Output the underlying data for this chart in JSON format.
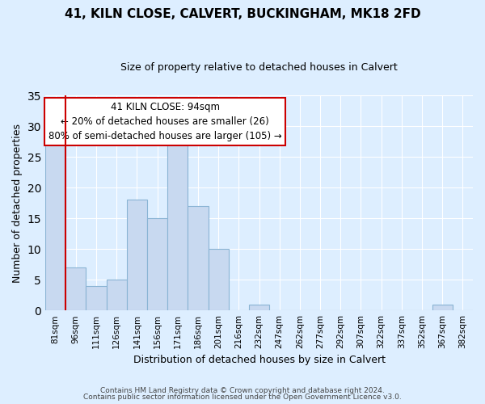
{
  "title": "41, KILN CLOSE, CALVERT, BUCKINGHAM, MK18 2FD",
  "subtitle": "Size of property relative to detached houses in Calvert",
  "xlabel": "Distribution of detached houses by size in Calvert",
  "ylabel": "Number of detached properties",
  "footer_line1": "Contains HM Land Registry data © Crown copyright and database right 2024.",
  "footer_line2": "Contains public sector information licensed under the Open Government Licence v3.0.",
  "bin_labels": [
    "81sqm",
    "96sqm",
    "111sqm",
    "126sqm",
    "141sqm",
    "156sqm",
    "171sqm",
    "186sqm",
    "201sqm",
    "216sqm",
    "232sqm",
    "247sqm",
    "262sqm",
    "277sqm",
    "292sqm",
    "307sqm",
    "322sqm",
    "337sqm",
    "352sqm",
    "367sqm",
    "382sqm"
  ],
  "bar_values": [
    27,
    7,
    4,
    5,
    18,
    15,
    27,
    17,
    10,
    0,
    1,
    0,
    0,
    0,
    0,
    0,
    0,
    0,
    0,
    1,
    0
  ],
  "bar_color": "#c8d9f0",
  "bar_edge_color": "#8ab4d4",
  "ylim": [
    0,
    35
  ],
  "yticks": [
    0,
    5,
    10,
    15,
    20,
    25,
    30,
    35
  ],
  "annotation_title": "41 KILN CLOSE: 94sqm",
  "annotation_line1": "← 20% of detached houses are smaller (26)",
  "annotation_line2": "80% of semi-detached houses are larger (105) →",
  "annotation_box_facecolor": "#ffffff",
  "annotation_box_edgecolor": "#cc0000",
  "line_color": "#cc0000",
  "background_color": "#ddeeff",
  "grid_color": "#ffffff",
  "title_fontsize": 11,
  "subtitle_fontsize": 9,
  "ylabel_fontsize": 9,
  "xlabel_fontsize": 9,
  "tick_fontsize": 7.5,
  "annotation_fontsize": 8.5,
  "footer_fontsize": 6.5
}
